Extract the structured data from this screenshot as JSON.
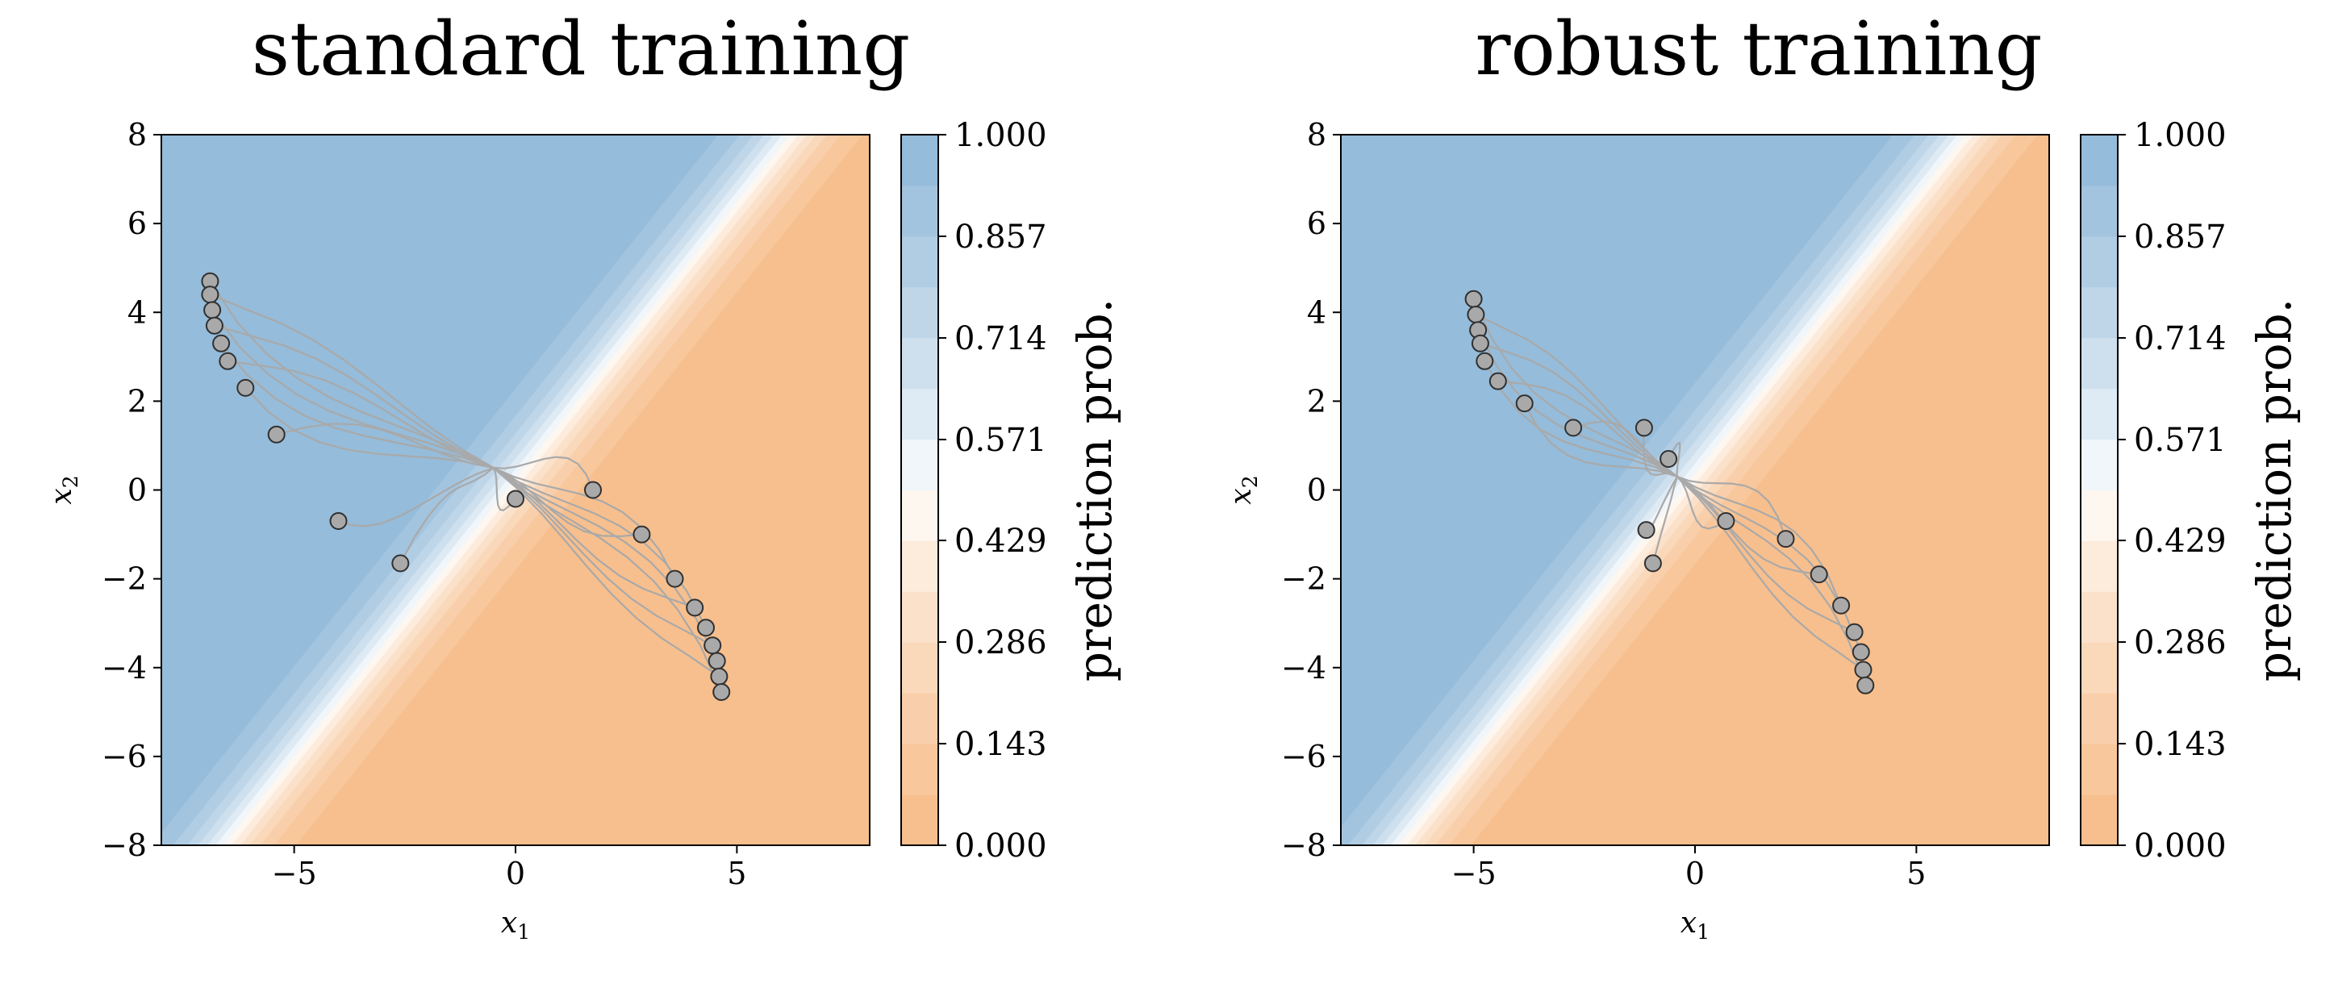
{
  "chart_data": [
    {
      "type": "contour",
      "title": "standard training",
      "xlabel": "x",
      "xlabel_sub": "1",
      "ylabel": "x",
      "ylabel_sub": "2",
      "xlim": [
        -8,
        8
      ],
      "ylim": [
        -8,
        8
      ],
      "xticks": [
        -5,
        0,
        5
      ],
      "yticks": [
        -8,
        -6,
        -4,
        -2,
        0,
        2,
        4,
        6,
        8
      ],
      "xtick_labels": [
        "−5",
        "0",
        "5"
      ],
      "ytick_labels": [
        "−8",
        "−6",
        "−4",
        "−2",
        "0",
        "2",
        "4",
        "6",
        "8"
      ],
      "boundary": {
        "x0_at_y0": -0.2,
        "slope": 1.25,
        "width": 1.4
      },
      "colorbar": {
        "label": "prediction prob.",
        "levels": [
          0.0,
          0.143,
          0.286,
          0.429,
          0.571,
          0.714,
          0.857,
          1.0
        ],
        "tick_labels": [
          "0.000",
          "0.143",
          "0.286",
          "0.429",
          "0.571",
          "0.714",
          "0.857",
          "1.000"
        ]
      },
      "points": [
        [
          -6.9,
          4.7
        ],
        [
          -6.9,
          4.4
        ],
        [
          -6.85,
          4.05
        ],
        [
          -6.8,
          3.7
        ],
        [
          -6.65,
          3.3
        ],
        [
          -6.5,
          2.9
        ],
        [
          -6.1,
          2.3
        ],
        [
          -5.4,
          1.25
        ],
        [
          -4.0,
          -0.7
        ],
        [
          -2.6,
          -1.65
        ],
        [
          0.0,
          -0.2
        ],
        [
          1.75,
          0.0
        ],
        [
          2.85,
          -1.0
        ],
        [
          3.6,
          -2.0
        ],
        [
          4.05,
          -2.65
        ],
        [
          4.3,
          -3.1
        ],
        [
          4.45,
          -3.5
        ],
        [
          4.55,
          -3.85
        ],
        [
          4.6,
          -4.2
        ],
        [
          4.65,
          -4.55
        ]
      ],
      "path_end": [
        -0.5,
        0.5
      ]
    },
    {
      "type": "contour",
      "title": "robust training",
      "xlabel": "x",
      "xlabel_sub": "1",
      "ylabel": "x",
      "ylabel_sub": "2",
      "xlim": [
        -8,
        8
      ],
      "ylim": [
        -8,
        8
      ],
      "xticks": [
        -5,
        0,
        5
      ],
      "yticks": [
        -8,
        -6,
        -4,
        -2,
        0,
        2,
        4,
        6,
        8
      ],
      "xtick_labels": [
        "−5",
        "0",
        "5"
      ],
      "ytick_labels": [
        "−8",
        "−6",
        "−4",
        "−2",
        "0",
        "2",
        "4",
        "6",
        "8"
      ],
      "boundary": {
        "x0_at_y0": -0.3,
        "slope": 1.25,
        "width": 1.4
      },
      "colorbar": {
        "label": "prediction prob.",
        "levels": [
          0.0,
          0.143,
          0.286,
          0.429,
          0.571,
          0.714,
          0.857,
          1.0
        ],
        "tick_labels": [
          "0.000",
          "0.143",
          "0.286",
          "0.429",
          "0.571",
          "0.714",
          "0.857",
          "1.000"
        ]
      },
      "points": [
        [
          -5.0,
          4.3
        ],
        [
          -4.95,
          3.95
        ],
        [
          -4.9,
          3.6
        ],
        [
          -4.85,
          3.3
        ],
        [
          -4.75,
          2.9
        ],
        [
          -4.45,
          2.45
        ],
        [
          -3.85,
          1.95
        ],
        [
          -2.75,
          1.4
        ],
        [
          -1.15,
          1.4
        ],
        [
          -0.6,
          0.7
        ],
        [
          -1.1,
          -0.9
        ],
        [
          -0.95,
          -1.65
        ],
        [
          0.7,
          -0.7
        ],
        [
          2.05,
          -1.1
        ],
        [
          2.8,
          -1.9
        ],
        [
          3.3,
          -2.6
        ],
        [
          3.6,
          -3.2
        ],
        [
          3.75,
          -3.65
        ],
        [
          3.8,
          -4.05
        ],
        [
          3.85,
          -4.4
        ]
      ],
      "path_end": [
        -0.4,
        0.3
      ]
    }
  ],
  "colors": {
    "class1": "#8fb8d8",
    "class0": "#f7bb87",
    "line": "#a9a9a9",
    "point_fill": "#a9a9a9",
    "point_edge": "#303030"
  }
}
